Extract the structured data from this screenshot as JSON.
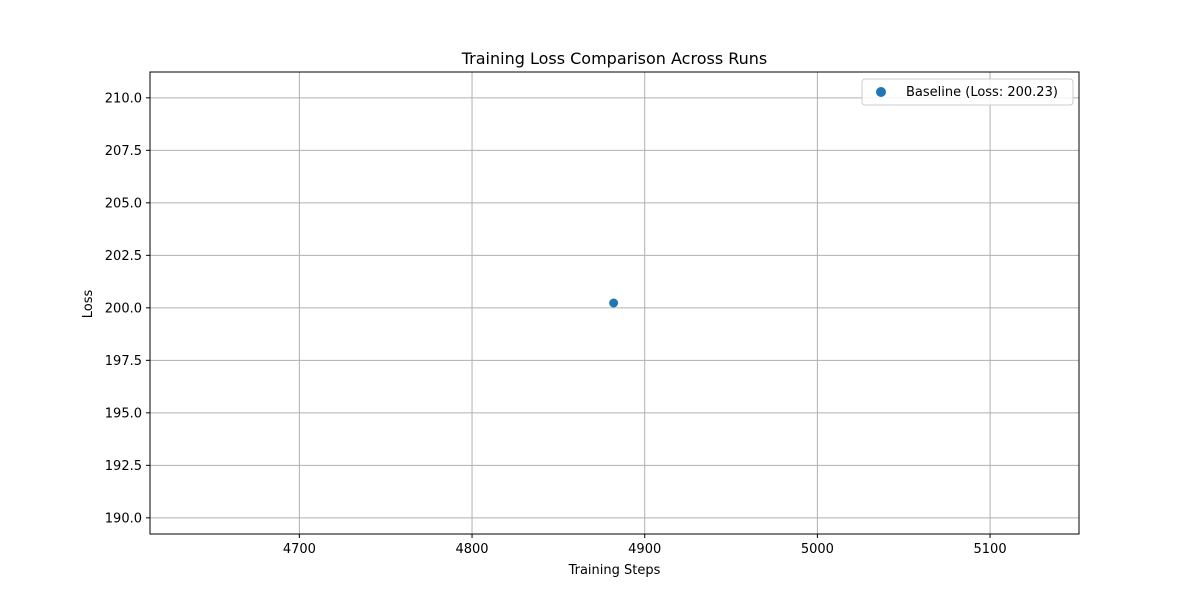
{
  "chart_data": {
    "type": "scatter",
    "title": "Training Loss Comparison Across Runs",
    "xlabel": "Training Steps",
    "ylabel": "Loss",
    "xlim": [
      4613.5,
      5151.5
    ],
    "ylim": [
      189.23,
      211.23
    ],
    "xticks": [
      "4700",
      "4800",
      "4900",
      "5000",
      "5100"
    ],
    "xtick_values": [
      4700,
      4800,
      4900,
      5000,
      5100
    ],
    "yticks": [
      "190.0",
      "192.5",
      "195.0",
      "197.5",
      "200.0",
      "202.5",
      "205.0",
      "207.5",
      "210.0"
    ],
    "ytick_values": [
      190.0,
      192.5,
      195.0,
      197.5,
      200.0,
      202.5,
      205.0,
      207.5,
      210.0
    ],
    "grid": true,
    "legend_position": "top-right",
    "series": [
      {
        "name": "Baseline (Loss: 200.23)",
        "color": "#1f77b4",
        "points": [
          {
            "x": 4882,
            "y": 200.23
          }
        ]
      }
    ]
  }
}
